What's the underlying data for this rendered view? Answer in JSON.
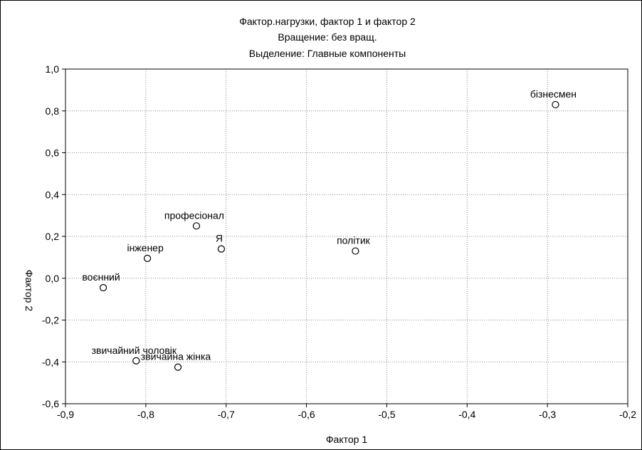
{
  "chart_data": {
    "type": "scatter",
    "title": "Фактор.нагрузки, фактор 1 и фактор   2",
    "subtitle_rotation": "Вращение: без вращ.",
    "subtitle_extraction": "Выделение: Главные компоненты",
    "xlabel": "Фактор 1",
    "ylabel": "Фактор 2",
    "xlim": [
      -0.9,
      -0.2
    ],
    "ylim": [
      -0.6,
      1.0
    ],
    "x_ticks": [
      "-0,9",
      "-0,8",
      "-0,7",
      "-0,6",
      "-0,5",
      "-0,4",
      "-0,3",
      "-0,2"
    ],
    "y_ticks": [
      "1,0",
      "0,8",
      "0,6",
      "0,4",
      "0,2",
      "0,0",
      "-0,2",
      "-0,4",
      "-0,6"
    ],
    "grid": true,
    "points": [
      {
        "label": "бізнесмен",
        "x": -0.29,
        "y": 0.83
      },
      {
        "label": "професіонал",
        "x": -0.737,
        "y": 0.25
      },
      {
        "label": "Я",
        "x": -0.706,
        "y": 0.14
      },
      {
        "label": "політик",
        "x": -0.539,
        "y": 0.13
      },
      {
        "label": "інженер",
        "x": -0.798,
        "y": 0.095
      },
      {
        "label": "воєнний",
        "x": -0.853,
        "y": -0.045
      },
      {
        "label": "звичайний чоловік",
        "x": -0.812,
        "y": -0.395
      },
      {
        "label": "звичайна жінка",
        "x": -0.76,
        "y": -0.425
      }
    ]
  }
}
